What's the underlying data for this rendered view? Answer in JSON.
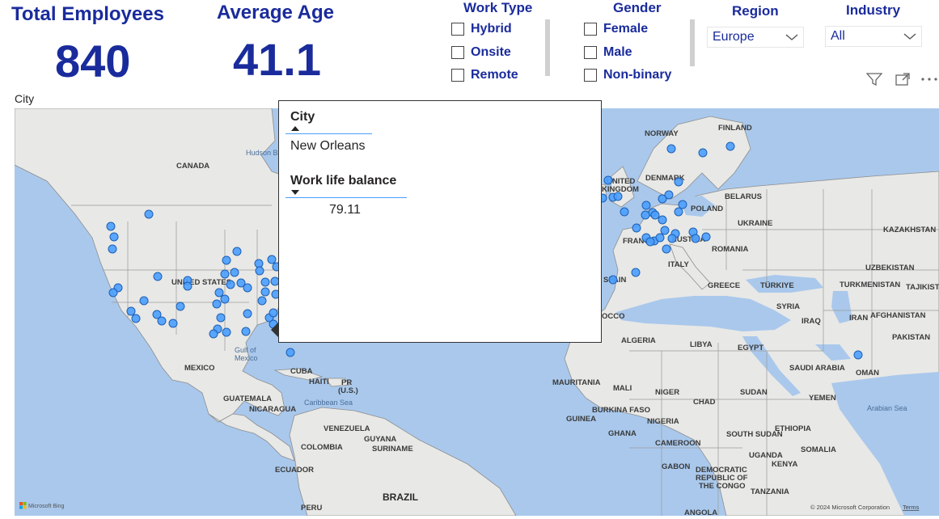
{
  "kpis": {
    "total_employees": {
      "label": "Total Employees",
      "value": "840"
    },
    "average_age": {
      "label": "Average Age",
      "value": "41.1"
    }
  },
  "slicers": {
    "work_type": {
      "title": "Work Type",
      "options": [
        "Hybrid",
        "Onsite",
        "Remote"
      ]
    },
    "gender": {
      "title": "Gender",
      "options": [
        "Female",
        "Male",
        "Non-binary"
      ]
    },
    "region": {
      "title": "Region",
      "selected": "Europe"
    },
    "industry": {
      "title": "Industry",
      "selected": "All"
    }
  },
  "map_visual": {
    "title": "City",
    "attribution_left": "Microsoft Bing",
    "attribution_right": "© 2024 Microsoft Corporation",
    "terms": "Terms",
    "icons": [
      "filter-icon",
      "focus-mode-icon",
      "more-options-icon"
    ],
    "bubble_color": "#4a9eff",
    "labels": {
      "canada": "CANADA",
      "us": "UNITED STATES",
      "mexico": "MEXICO",
      "cuba": "CUBA",
      "haiti": "HAITI",
      "pr1": "PR",
      "pr2": "(U.S.)",
      "guatemala": "GUATEMALA",
      "nicaragua": "NICARAGUA",
      "venezuela": "VENEZUELA",
      "guyana": "GUYANA",
      "suriname": "SURINAME",
      "colombia": "COLOMBIA",
      "ecuador": "ECUADOR",
      "peru": "PERU",
      "brazil": "BRAZIL",
      "norway": "NORWAY",
      "finland": "FINLAND",
      "uk1": "UNITED",
      "uk2": "KINGDOM",
      "denmark": "DENMARK",
      "belarus": "BELARUS",
      "poland": "POLAND",
      "ukraine": "UKRAINE",
      "france": "FRANCE",
      "austria": "AUSTRIA",
      "romania": "ROMANIA",
      "italy": "ITALY",
      "spain": "SPAIN",
      "greece": "GREECE",
      "turkiye": "TÜRKIYE",
      "kazakhstan": "KAZAKHSTAN",
      "uzbekistan": "UZBEKISTAN",
      "turkmenistan": "TURKMENISTAN",
      "tajikistan": "TAJIKISTAN",
      "syria": "SYRIA",
      "iraq": "IRAQ",
      "iran": "IRAN",
      "afghanistan": "AFGHANISTAN",
      "pakistan": "PAKISTAN",
      "morocco": "OCCO",
      "algeria": "ALGERIA",
      "libya": "LIBYA",
      "egypt": "EGYPT",
      "saudi": "SAUDI ARABIA",
      "oman": "OMAN",
      "yemen": "YEMEN",
      "mauritania": "MAURITANIA",
      "mali": "MALI",
      "niger": "NIGER",
      "chad": "CHAD",
      "sudan": "SUDAN",
      "burkina": "BURKINA FASO",
      "guinea": "GUINEA",
      "nigeria": "NIGERIA",
      "ghana": "GHANA",
      "cameroon": "CAMEROON",
      "south_sudan": "SOUTH SUDAN",
      "ethiopia": "ETHIOPIA",
      "somalia": "SOMALIA",
      "uganda": "UGANDA",
      "kenya": "KENYA",
      "gabon": "GABON",
      "drc1": "DEMOCRATIC",
      "drc2": "REPUBLIC OF",
      "drc3": "THE CONGO",
      "tanzania": "TANZANIA",
      "angola": "ANGOLA",
      "hudson": "Hudson B",
      "gulf1": "Gulf of",
      "gulf2": "Mexico",
      "caribbean": "Caribbean Sea",
      "arabian": "Arabian Sea"
    }
  },
  "tooltip": {
    "field1_label": "City",
    "field1_value": "New Orleans",
    "field2_label": "Work life balance",
    "field2_value": "79.11"
  }
}
